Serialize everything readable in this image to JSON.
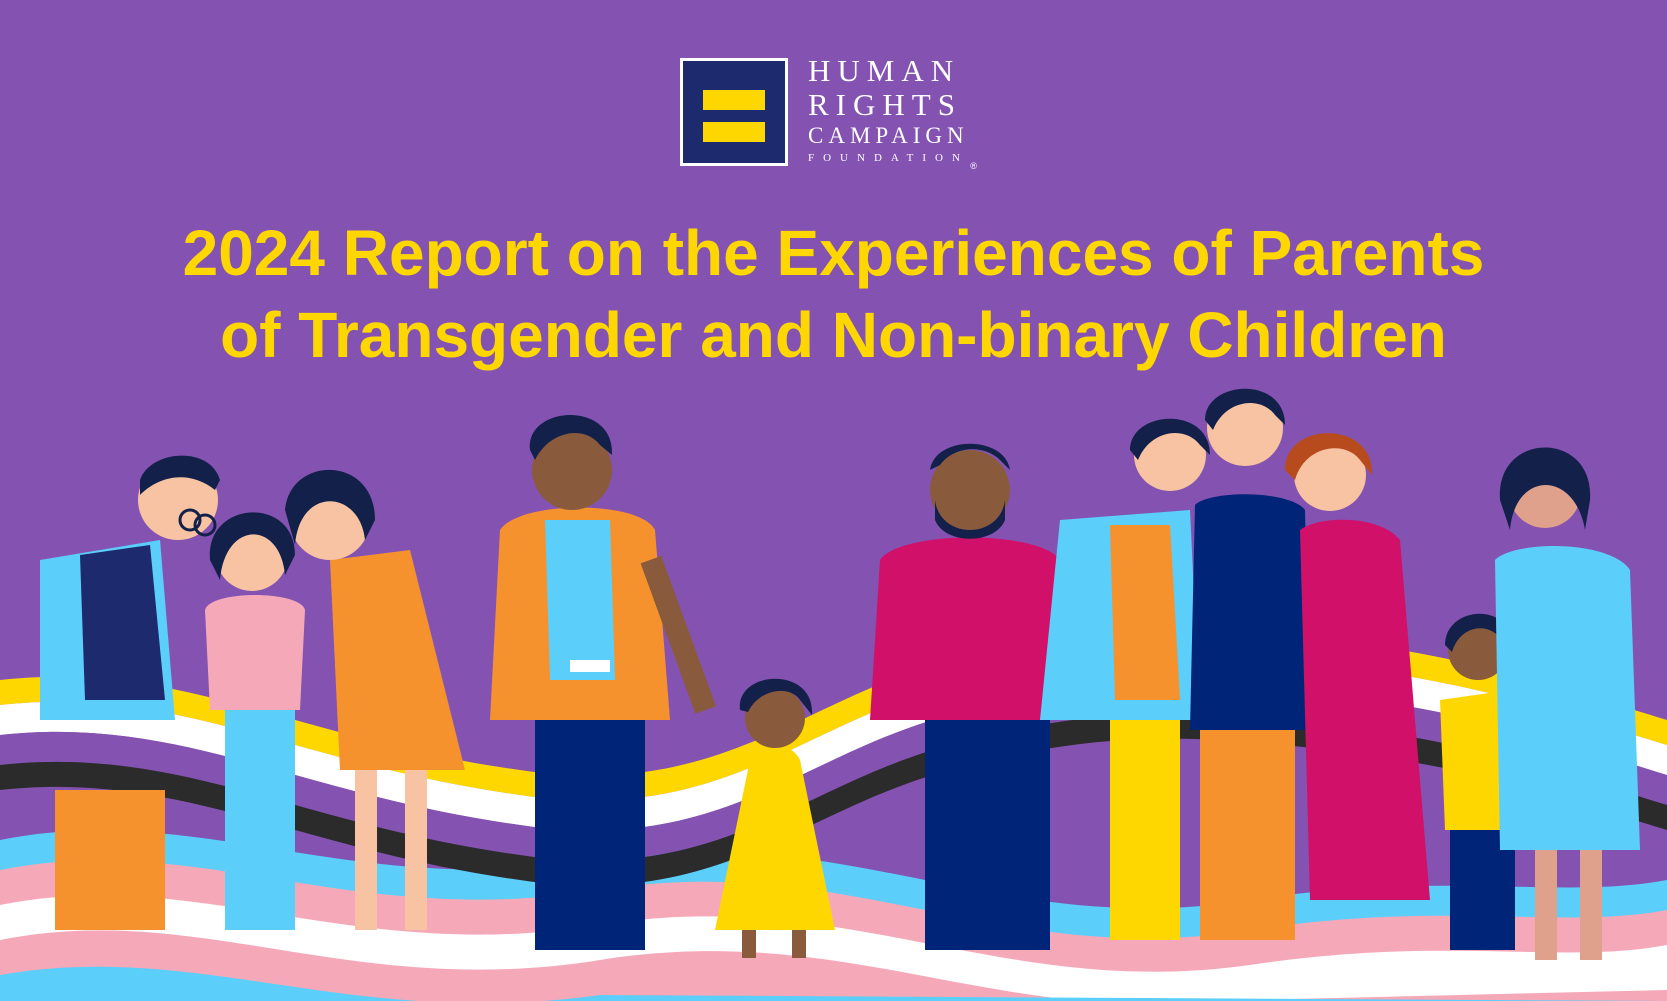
{
  "logo": {
    "line1": "HUMAN",
    "line2": "RIGHTS",
    "line3": "CAMPAIGN",
    "line4": "FOUNDATION",
    "registered": "®"
  },
  "title": {
    "line1": "2024 Report on the Experiences of Parents",
    "line2": "of Transgender and Non-binary Children"
  },
  "colors": {
    "background": "#8453b2",
    "title_yellow": "#ffd700",
    "logo_navy": "#1e2a6e",
    "ribbon_yellow": "#ffd700",
    "ribbon_white": "#ffffff",
    "ribbon_purple": "#8453b2",
    "ribbon_black": "#2b2b2b",
    "trans_blue": "#5bcefa",
    "trans_pink": "#f5a9b8"
  }
}
